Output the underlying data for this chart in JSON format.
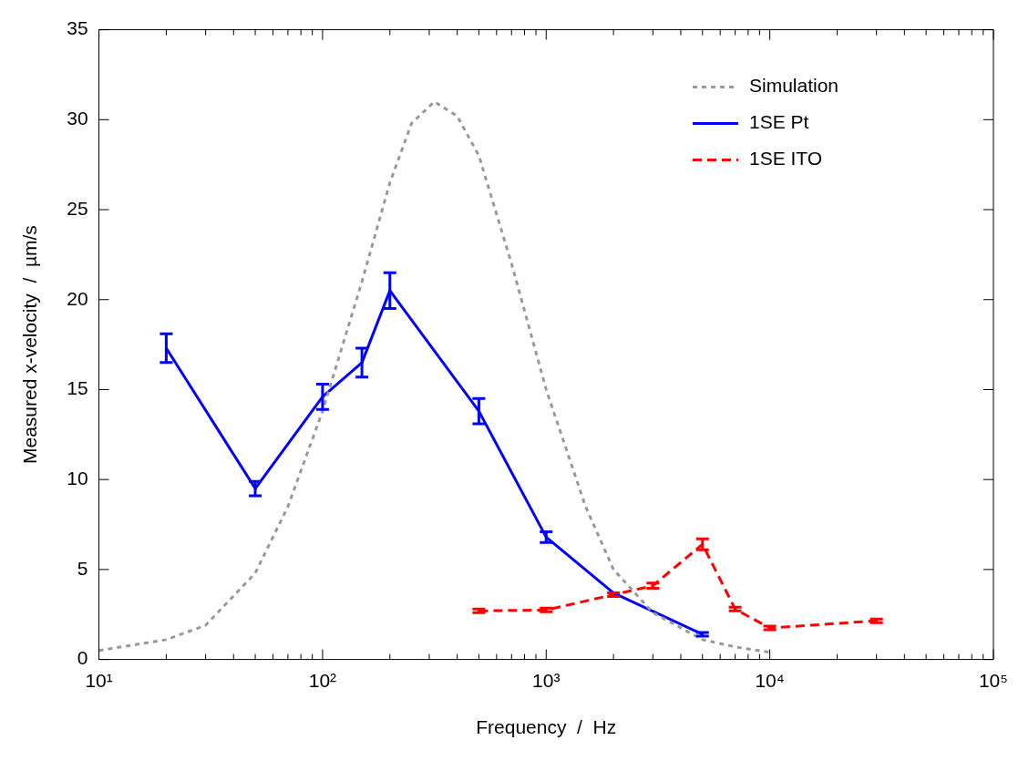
{
  "chart_data": {
    "type": "line",
    "xlabel": "Frequency  /  Hz",
    "ylabel": "Measured x-velocity  /  µm/s",
    "log": "x",
    "grid": false,
    "legend": "top right",
    "marker": "none",
    "xlim": [
      10,
      100000
    ],
    "xticks": [
      {
        "value": 10,
        "label": "10¹"
      },
      {
        "value": 20,
        "label": null
      },
      {
        "value": 30,
        "label": null
      },
      {
        "value": 40,
        "label": null
      },
      {
        "value": 50,
        "label": null
      },
      {
        "value": 60,
        "label": null
      },
      {
        "value": 70,
        "label": null
      },
      {
        "value": 80,
        "label": null
      },
      {
        "value": 90,
        "label": null
      },
      {
        "value": 100,
        "label": "10²"
      },
      {
        "value": 200,
        "label": null
      },
      {
        "value": 300,
        "label": null
      },
      {
        "value": 400,
        "label": null
      },
      {
        "value": 500,
        "label": null
      },
      {
        "value": 600,
        "label": null
      },
      {
        "value": 700,
        "label": null
      },
      {
        "value": 800,
        "label": null
      },
      {
        "value": 900,
        "label": null
      },
      {
        "value": 1000,
        "label": "10³"
      },
      {
        "value": 2000,
        "label": null
      },
      {
        "value": 3000,
        "label": null
      },
      {
        "value": 4000,
        "label": null
      },
      {
        "value": 5000,
        "label": null
      },
      {
        "value": 6000,
        "label": null
      },
      {
        "value": 7000,
        "label": null
      },
      {
        "value": 8000,
        "label": null
      },
      {
        "value": 9000,
        "label": null
      },
      {
        "value": 10000,
        "label": "10⁴"
      },
      {
        "value": 20000,
        "label": null
      },
      {
        "value": 30000,
        "label": null
      },
      {
        "value": 40000,
        "label": null
      },
      {
        "value": 50000,
        "label": null
      },
      {
        "value": 60000,
        "label": null
      },
      {
        "value": 70000,
        "label": null
      },
      {
        "value": 80000,
        "label": null
      },
      {
        "value": 90000,
        "label": null
      },
      {
        "value": 100000,
        "label": "10⁵"
      }
    ],
    "ylim": [
      0,
      35
    ],
    "yticks": [
      0,
      5,
      10,
      15,
      20,
      25,
      30,
      35
    ],
    "series": [
      {
        "name": "Simulation",
        "color": "#999999",
        "line_style": "dotted",
        "x": [
          10,
          20,
          30,
          50,
          70,
          100,
          150,
          200,
          250,
          316,
          400,
          500,
          700,
          1000,
          1500,
          2000,
          3000,
          5000,
          7000,
          10000
        ],
        "values": [
          0.5,
          1.1,
          1.9,
          4.8,
          8.5,
          13.8,
          21,
          26.5,
          29.8,
          31,
          30.2,
          28,
          22,
          15,
          8.5,
          5,
          2.6,
          1.1,
          0.7,
          0.4
        ]
      },
      {
        "name": "1SE Pt",
        "color": "#0000ff",
        "line_style": "solid",
        "x": [
          20,
          50,
          100,
          150,
          200,
          500,
          1000,
          2000,
          5000
        ],
        "values": [
          17.3,
          9.5,
          14.6,
          16.5,
          20.5,
          13.8,
          6.8,
          3.7,
          1.4
        ],
        "errors": [
          [
            16.5,
            18.1
          ],
          [
            9.1,
            9.9
          ],
          [
            13.9,
            15.3
          ],
          [
            15.7,
            17.3
          ],
          [
            19.5,
            21.5
          ],
          [
            13.1,
            14.5
          ],
          [
            6.5,
            7.1
          ],
          null,
          [
            1.3,
            1.5
          ]
        ]
      },
      {
        "name": "1SE ITO",
        "color": "#ff0000",
        "line_style": "dashed",
        "x": [
          500,
          1000,
          2000,
          3000,
          5000,
          7000,
          10000,
          30000
        ],
        "values": [
          2.7,
          2.75,
          3.6,
          4.1,
          6.4,
          2.8,
          1.75,
          2.15
        ],
        "errors": [
          [
            2.6,
            2.8
          ],
          [
            2.65,
            2.85
          ],
          [
            3.5,
            3.7
          ],
          [
            3.95,
            4.25
          ],
          [
            6.1,
            6.7
          ],
          [
            2.7,
            2.9
          ],
          [
            1.65,
            1.85
          ],
          [
            2.05,
            2.25
          ]
        ]
      }
    ]
  }
}
